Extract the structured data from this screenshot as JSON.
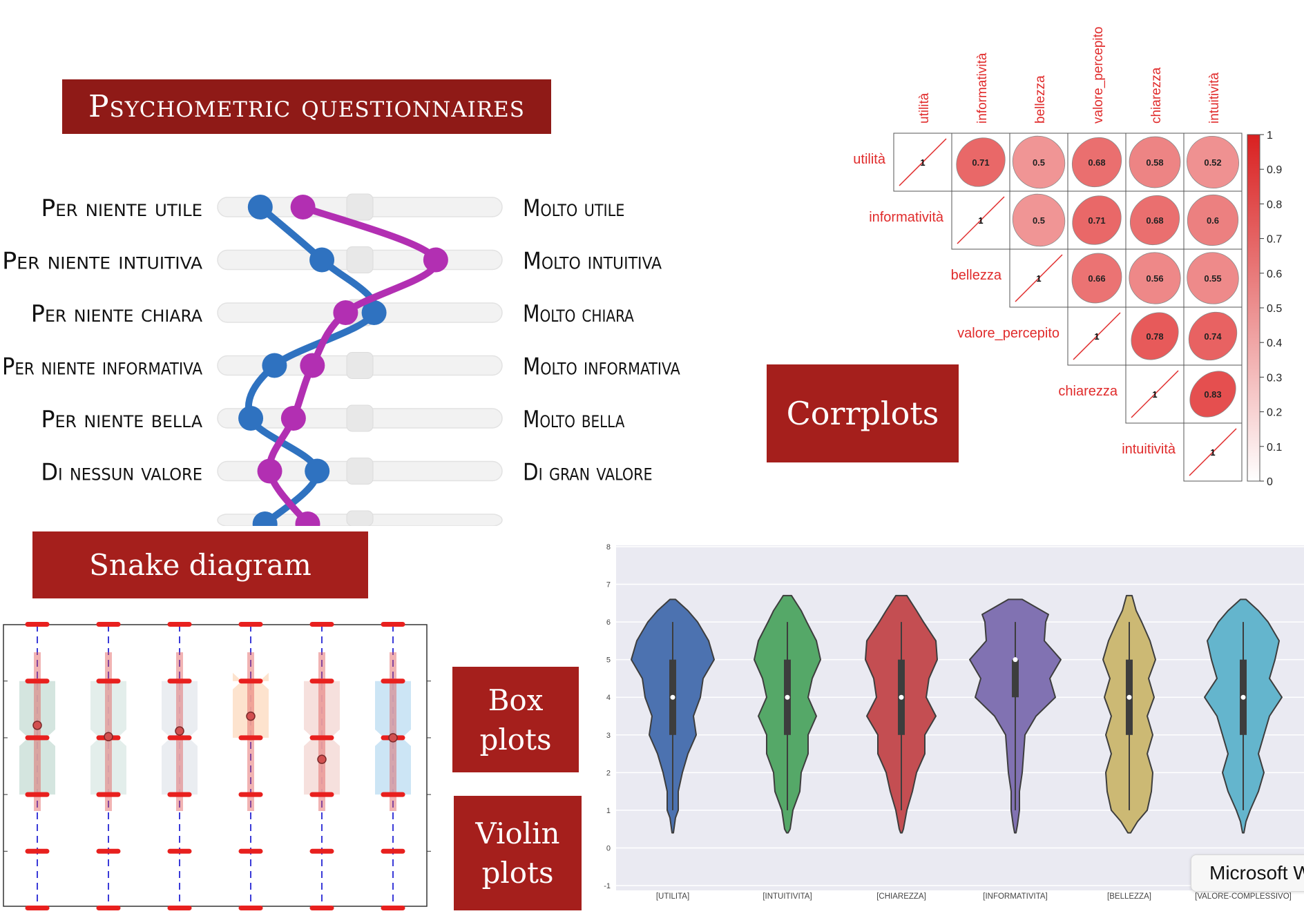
{
  "title": "Psychometric questionnaires",
  "banners": {
    "corrplots": "Corrplots",
    "snake": "Snake diagram",
    "box_line1": "Box",
    "box_line2": "plots",
    "violin_line1": "Violin",
    "violin_line2": "plots"
  },
  "tooltip": "Microsoft W",
  "colors": {
    "banner": "#a51f1c",
    "snake_blue": "#2f72c0",
    "snake_magenta": "#b22fb2",
    "corr_red": "#e02b2b"
  },
  "chart_data": [
    {
      "type": "line",
      "name": "snake diagram",
      "scale_min": 1,
      "scale_max": 7,
      "rows": [
        {
          "left": "Per niente utile",
          "right": "Molto utile"
        },
        {
          "left": "Per niente intuitiva",
          "right": "Molto intuitiva"
        },
        {
          "left": "Per niente chiara",
          "right": "Molto chiara"
        },
        {
          "left": "Per niente informativa",
          "right": "Molto informativa"
        },
        {
          "left": "Per niente bella",
          "right": "Molto bella"
        },
        {
          "left": "Di nessun valore",
          "right": "Di gran valore"
        },
        {
          "left": "",
          "right": ""
        }
      ],
      "series": [
        {
          "color": "#2f72c0",
          "values": [
            1.9,
            3.2,
            4.3,
            2.2,
            1.7,
            3.1,
            2.0
          ]
        },
        {
          "color": "#b22fb2",
          "values": [
            2.8,
            5.6,
            3.7,
            3.0,
            2.6,
            2.1,
            2.9
          ]
        }
      ]
    },
    {
      "type": "heatmap",
      "name": "corrplot",
      "variables": [
        "utilità",
        "informatività",
        "bellezza",
        "valore_percepito",
        "chiarezza",
        "intuitività"
      ],
      "upper": [
        [
          null,
          0.71,
          0.5,
          0.68,
          0.58,
          0.52
        ],
        [
          null,
          null,
          0.5,
          0.71,
          0.68,
          0.6
        ],
        [
          null,
          null,
          null,
          0.66,
          0.56,
          0.55
        ],
        [
          null,
          null,
          null,
          null,
          0.78,
          0.74
        ],
        [
          null,
          null,
          null,
          null,
          null,
          0.83
        ],
        [
          null,
          null,
          null,
          null,
          null,
          null
        ]
      ],
      "colorbar_ticks": [
        "1",
        "0.9",
        "0.8",
        "0.7",
        "0.6",
        "0.5",
        "0.4",
        "0.3",
        "0.2",
        "0.1",
        "0"
      ]
    },
    {
      "type": "bar",
      "name": "box plots",
      "boxes": [
        {
          "q1": 3,
          "q3": 5,
          "median": 4,
          "mean": 4.22,
          "color": "#cfe2dc"
        },
        {
          "q1": 3,
          "q3": 5,
          "median": 4,
          "mean": 4.02,
          "color": "#e0ece9"
        },
        {
          "q1": 3,
          "q3": 5,
          "median": 4,
          "mean": 4.12,
          "color": "#e8ebf0"
        },
        {
          "q1": 4,
          "q3": 5,
          "median": 5,
          "mean": 4.38,
          "color": "#fde0c9"
        },
        {
          "q1": 3,
          "q3": 5,
          "median": 4,
          "mean": 3.62,
          "color": "#f5ddd9"
        },
        {
          "q1": 3,
          "q3": 5,
          "median": 4,
          "mean": 4.0,
          "color": "#c6e2f4"
        }
      ]
    },
    {
      "type": "area",
      "name": "violin plots",
      "categories": [
        "[UTILITA]",
        "[INTUITIVITA]",
        "[CHIAREZZA]",
        "[INFORMATIVITA]",
        "[BELLEZZA]",
        "[VALORE-COMPLESSIVO]"
      ],
      "colors": [
        "#4c72b0",
        "#55a868",
        "#c44e52",
        "#8172b2",
        "#ccb974",
        "#64b5cd"
      ],
      "y_ticks": [
        "8",
        "7",
        "6",
        "5",
        "4",
        "3",
        "2",
        "1",
        "0",
        "-1"
      ],
      "ylim": [
        -1,
        8
      ],
      "medians": [
        4,
        4,
        4,
        5,
        4,
        4
      ],
      "q1": [
        3,
        3,
        3,
        4,
        3,
        3
      ],
      "q3": [
        5,
        5,
        5,
        5,
        5,
        5
      ],
      "whisker_low": [
        1,
        1,
        1,
        1,
        1,
        1
      ],
      "whisker_high": [
        6,
        6,
        6,
        6,
        6,
        6
      ]
    }
  ]
}
